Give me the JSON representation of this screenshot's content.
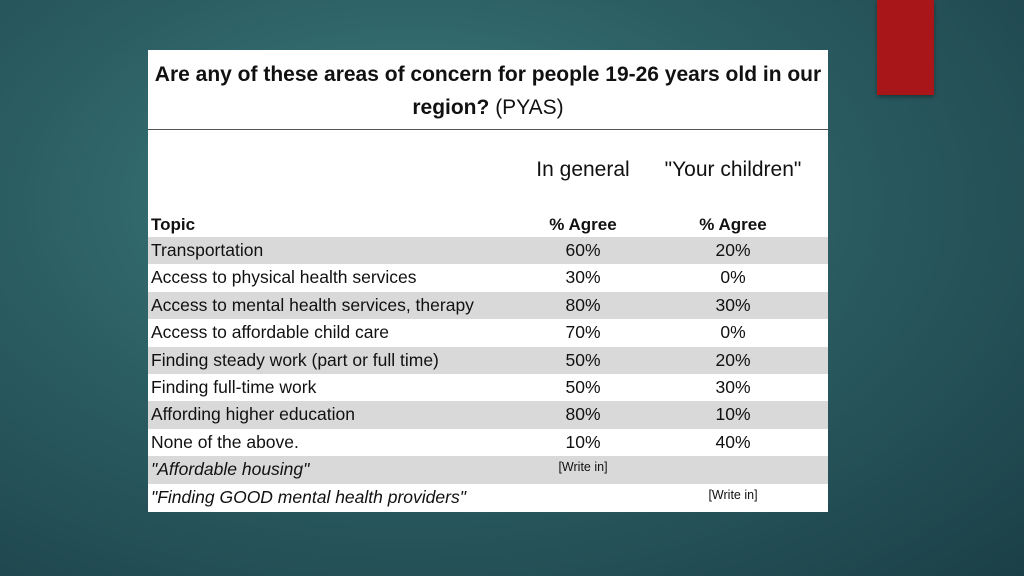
{
  "slide": {
    "title_bold": "Are any of these areas of concern for people 19-26 years old in our region?",
    "title_suffix": "(PYAS)",
    "column_groups": [
      "In general",
      "\"Your children\""
    ],
    "headers": {
      "topic": "Topic",
      "col1": "% Agree",
      "col2": "% Agree"
    },
    "rows": [
      {
        "topic": "Transportation",
        "general": "60%",
        "children": "20%"
      },
      {
        "topic": "Access to physical health services",
        "general": "30%",
        "children": "0%"
      },
      {
        "topic": "Access to mental health services, therapy",
        "general": "80%",
        "children": "30%"
      },
      {
        "topic": "Access to affordable child care",
        "general": "70%",
        "children": "0%"
      },
      {
        "topic": "Finding steady work (part or full time)",
        "general": "50%",
        "children": "20%"
      },
      {
        "topic": "Finding full-time work",
        "general": "50%",
        "children": "30%"
      },
      {
        "topic": "Affording higher education",
        "general": "80%",
        "children": "10%"
      },
      {
        "topic": "None of the above.",
        "general": "10%",
        "children": "40%"
      },
      {
        "topic": "\"Affordable housing\"",
        "general": "[Write in]",
        "children": ""
      },
      {
        "topic": "\"Finding GOOD mental health providers\"",
        "general": "",
        "children": "[Write in]"
      }
    ]
  },
  "colors": {
    "accent": "#a8161a",
    "row_shade": "#d9d9d9",
    "background": "#2b5e63"
  }
}
